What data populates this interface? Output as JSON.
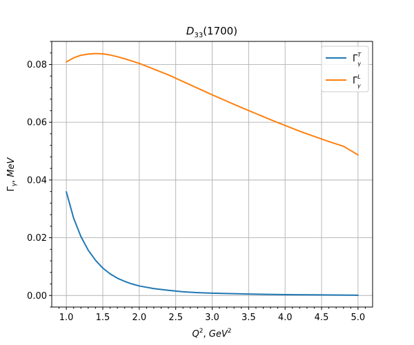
{
  "chart_data": {
    "type": "line",
    "title": "D33(1700)",
    "xlabel": "Q2, GeV2",
    "ylabel": "Γγ, MeV",
    "xlim": [
      0.8,
      5.2
    ],
    "ylim": [
      -0.004,
      0.088
    ],
    "xticks": [
      1.0,
      1.5,
      2.0,
      2.5,
      3.0,
      3.5,
      4.0,
      4.5,
      5.0
    ],
    "xtick_labels": [
      "1.0",
      "1.5",
      "2.0",
      "2.5",
      "3.0",
      "3.5",
      "4.0",
      "4.5",
      "5.0"
    ],
    "yticks": [
      0.0,
      0.02,
      0.04,
      0.06,
      0.08
    ],
    "ytick_labels": [
      "0.00",
      "0.02",
      "0.04",
      "0.06",
      "0.08"
    ],
    "grid": true,
    "legend_position": "upper right",
    "series": [
      {
        "name": "ΓγT",
        "color": "#1f77b4",
        "x": [
          1.0,
          1.1,
          1.2,
          1.3,
          1.4,
          1.5,
          1.6,
          1.7,
          1.8,
          1.9,
          2.0,
          2.2,
          2.4,
          2.6,
          2.8,
          3.0,
          3.5,
          4.0,
          4.5,
          5.0
        ],
        "y": [
          0.0359,
          0.0268,
          0.0204,
          0.0157,
          0.0122,
          0.0095,
          0.0075,
          0.006,
          0.0049,
          0.004,
          0.0033,
          0.0024,
          0.0018,
          0.0013,
          0.001,
          0.0008,
          0.0005,
          0.0003,
          0.0002,
          0.0001
        ]
      },
      {
        "name": "ΓγL",
        "color": "#ff7f0e",
        "x": [
          1.0,
          1.1,
          1.2,
          1.3,
          1.4,
          1.5,
          1.6,
          1.7,
          1.8,
          1.9,
          2.0,
          2.2,
          2.4,
          2.6,
          2.8,
          3.0,
          3.2,
          3.4,
          3.6,
          3.8,
          4.0,
          4.2,
          4.4,
          4.6,
          4.8,
          5.0
        ],
        "y": [
          0.0809,
          0.0823,
          0.0832,
          0.0836,
          0.0838,
          0.0837,
          0.0833,
          0.0827,
          0.082,
          0.0812,
          0.0804,
          0.0784,
          0.0764,
          0.0741,
          0.0718,
          0.0695,
          0.0673,
          0.0651,
          0.063,
          0.0609,
          0.0589,
          0.0569,
          0.0551,
          0.0533,
          0.0517,
          0.0487
        ]
      }
    ]
  }
}
